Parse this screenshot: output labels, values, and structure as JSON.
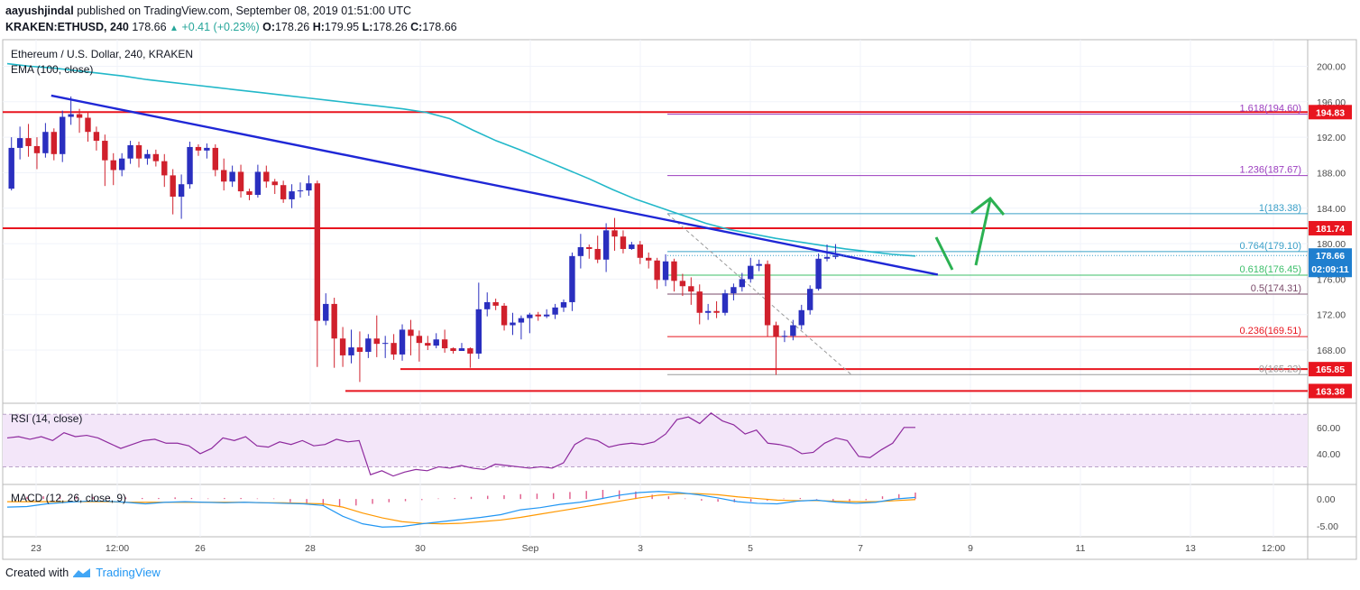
{
  "header": {
    "author": "aayushjindal",
    "published_text": "published on TradingView.com, September 08, 2019 01:51:00 UTC",
    "symbol": "KRAKEN:ETHUSD, 240",
    "last": "178.66",
    "change": "+0.41 (+0.23%)",
    "o_label": "O:",
    "o": "178.26",
    "h_label": "H:",
    "h": "179.95",
    "l_label": "L:",
    "l": "178.26",
    "c_label": "C:",
    "c": "178.66"
  },
  "legend": {
    "title": "Ethereum / U.S. Dollar, 240, KRAKEN",
    "ema": "EMA (100, close)",
    "rsi": "RSI (14, close)",
    "macd": "MACD (12, 26, close, 9)"
  },
  "footer": {
    "created_with": "Created with",
    "brand": "TradingView"
  },
  "colors": {
    "up": "#2a2fbf",
    "down": "#d0202c",
    "ema": "#22b8c9",
    "trend": "#1f27d6",
    "hline": "#e8151f",
    "fib_purple": "#9b3dbf",
    "fib_blue": "#3aa0c8",
    "rsi": "#8e2a9e",
    "arrow": "#2bb152",
    "macd_line": "#2196f3",
    "signal_line": "#ff9800"
  },
  "chart_data": {
    "type": "candlestick",
    "price_axis": {
      "ylim": [
        162.0,
        203.0
      ],
      "ticks": [
        "200.00",
        "196.00",
        "192.00",
        "188.00",
        "184.00",
        "180.00",
        "176.00",
        "172.00",
        "168.00"
      ]
    },
    "time_axis": {
      "labels": [
        "23",
        "12:00",
        "26",
        "28",
        "30",
        "Sep",
        "3",
        "5",
        "7",
        "9",
        "11",
        "13",
        "12:00"
      ]
    },
    "candles": [
      [
        186.2,
        190.8,
        186.0,
        192.0
      ],
      [
        190.8,
        191.9,
        189.5,
        193.2
      ],
      [
        191.9,
        191.0,
        189.8,
        193.5
      ],
      [
        191.0,
        190.2,
        188.4,
        192.0
      ],
      [
        190.2,
        192.6,
        189.7,
        193.6
      ],
      [
        192.6,
        190.1,
        189.4,
        193.0
      ],
      [
        190.1,
        194.3,
        189.2,
        195.0
      ],
      [
        194.3,
        194.6,
        193.4,
        196.6
      ],
      [
        194.6,
        194.2,
        192.5,
        195.2
      ],
      [
        194.2,
        192.6,
        191.5,
        194.8
      ],
      [
        192.6,
        191.6,
        190.5,
        193.2
      ],
      [
        191.6,
        189.4,
        186.5,
        192.3
      ],
      [
        189.4,
        188.3,
        186.6,
        190.2
      ],
      [
        188.3,
        189.6,
        187.6,
        190.2
      ],
      [
        189.6,
        191.1,
        189.0,
        191.6
      ],
      [
        191.1,
        189.6,
        188.6,
        191.5
      ],
      [
        189.6,
        190.1,
        188.9,
        190.6
      ],
      [
        190.1,
        189.3,
        188.7,
        190.6
      ],
      [
        189.3,
        187.7,
        186.4,
        190.1
      ],
      [
        187.7,
        185.3,
        183.3,
        188.4
      ],
      [
        185.3,
        186.7,
        182.8,
        187.8
      ],
      [
        186.7,
        190.9,
        186.2,
        191.5
      ],
      [
        190.9,
        190.5,
        189.9,
        191.2
      ],
      [
        190.5,
        190.8,
        189.6,
        191.3
      ],
      [
        190.8,
        188.3,
        187.6,
        191.2
      ],
      [
        188.3,
        187.0,
        186.0,
        189.6
      ],
      [
        187.0,
        188.1,
        186.4,
        188.8
      ],
      [
        188.1,
        185.9,
        185.2,
        188.9
      ],
      [
        185.9,
        185.5,
        184.9,
        186.2
      ],
      [
        185.5,
        188.1,
        185.2,
        188.9
      ],
      [
        188.1,
        187.0,
        186.3,
        188.8
      ],
      [
        187.0,
        186.6,
        185.6,
        187.3
      ],
      [
        186.6,
        185.0,
        184.6,
        187.1
      ],
      [
        185.0,
        185.9,
        184.0,
        186.7
      ],
      [
        185.9,
        186.0,
        185.2,
        186.9
      ],
      [
        186.0,
        186.8,
        185.4,
        187.7
      ],
      [
        186.8,
        171.3,
        166.1,
        187.1
      ],
      [
        171.3,
        173.2,
        170.8,
        174.4
      ],
      [
        173.2,
        169.3,
        166.0,
        173.9
      ],
      [
        169.3,
        167.4,
        166.1,
        170.6
      ],
      [
        167.4,
        168.3,
        166.5,
        170.3
      ],
      [
        168.3,
        167.8,
        164.4,
        170.1
      ],
      [
        167.8,
        169.3,
        167.1,
        169.8
      ],
      [
        169.3,
        168.7,
        167.2,
        171.9
      ],
      [
        168.7,
        168.8,
        167.1,
        169.6
      ],
      [
        168.8,
        167.5,
        166.9,
        169.8
      ],
      [
        167.5,
        170.3,
        166.8,
        170.9
      ],
      [
        170.3,
        169.6,
        167.4,
        171.4
      ],
      [
        169.6,
        168.8,
        166.7,
        170.2
      ],
      [
        168.8,
        168.5,
        168.0,
        169.6
      ],
      [
        168.5,
        169.2,
        168.2,
        169.9
      ],
      [
        169.2,
        168.2,
        167.7,
        170.3
      ],
      [
        168.2,
        167.9,
        167.6,
        168.3
      ],
      [
        167.9,
        168.2,
        167.9,
        168.8
      ],
      [
        168.2,
        167.6,
        166.0,
        168.3
      ],
      [
        167.6,
        172.6,
        167.0,
        175.6
      ],
      [
        172.6,
        173.4,
        171.8,
        174.5
      ],
      [
        173.4,
        173.0,
        172.5,
        173.8
      ],
      [
        173.0,
        170.8,
        170.2,
        173.3
      ],
      [
        170.8,
        171.1,
        169.7,
        172.2
      ],
      [
        171.1,
        171.6,
        169.2,
        171.9
      ],
      [
        171.6,
        172.0,
        169.9,
        172.2
      ],
      [
        172.0,
        171.8,
        171.3,
        172.3
      ],
      [
        171.8,
        172.0,
        171.6,
        172.6
      ],
      [
        172.0,
        172.8,
        171.5,
        173.2
      ],
      [
        172.8,
        173.4,
        172.3,
        173.7
      ],
      [
        173.4,
        178.6,
        172.4,
        179.0
      ],
      [
        178.6,
        179.6,
        177.2,
        181.1
      ],
      [
        179.6,
        179.4,
        178.3,
        179.9
      ],
      [
        179.4,
        178.2,
        177.8,
        180.9
      ],
      [
        178.2,
        181.5,
        176.8,
        182.3
      ],
      [
        181.5,
        180.8,
        179.2,
        182.9
      ],
      [
        180.8,
        179.4,
        178.9,
        181.5
      ],
      [
        179.4,
        179.9,
        179.3,
        180.2
      ],
      [
        179.9,
        178.4,
        177.7,
        180.3
      ],
      [
        178.4,
        178.1,
        177.2,
        179.0
      ],
      [
        178.1,
        175.9,
        174.9,
        178.4
      ],
      [
        175.9,
        178.0,
        175.2,
        178.8
      ],
      [
        178.0,
        175.8,
        174.6,
        178.3
      ],
      [
        175.8,
        175.2,
        174.1,
        176.6
      ],
      [
        175.2,
        174.6,
        173.1,
        176.2
      ],
      [
        174.6,
        172.2,
        170.9,
        175.4
      ],
      [
        172.2,
        172.4,
        171.4,
        173.2
      ],
      [
        172.4,
        172.2,
        171.6,
        173.5
      ],
      [
        172.2,
        174.4,
        171.9,
        174.8
      ],
      [
        174.4,
        175.1,
        173.6,
        175.5
      ],
      [
        175.1,
        176.0,
        174.6,
        176.7
      ],
      [
        176.0,
        177.5,
        175.6,
        178.4
      ],
      [
        177.5,
        177.7,
        176.9,
        178.2
      ],
      [
        177.7,
        170.8,
        169.5,
        178.1
      ],
      [
        170.8,
        169.5,
        165.2,
        171.2
      ],
      [
        169.5,
        169.6,
        168.9,
        170.2
      ],
      [
        169.6,
        170.8,
        169.1,
        171.4
      ],
      [
        170.8,
        172.5,
        170.3,
        173.1
      ],
      [
        172.5,
        174.9,
        172.0,
        175.3
      ],
      [
        174.9,
        178.3,
        174.7,
        178.9
      ],
      [
        178.3,
        178.5,
        178.0,
        179.9
      ],
      [
        178.5,
        178.66,
        178.26,
        179.95
      ]
    ],
    "ema100": [
      200.3,
      200.0,
      199.8,
      199.5,
      199.2,
      198.9,
      198.5,
      198.2,
      197.9,
      197.6,
      197.3,
      197.0,
      196.7,
      196.4,
      196.1,
      195.8,
      195.5,
      195.2,
      194.8,
      194.1,
      192.8,
      191.6,
      190.6,
      189.5,
      188.4,
      187.3,
      186.1,
      185.0,
      184.1,
      183.2,
      182.3,
      181.6,
      181.1,
      180.6,
      180.2,
      179.8,
      179.4,
      179.1,
      178.8,
      178.6
    ],
    "horizontal_levels": [
      {
        "price": 194.83,
        "label": "194.83"
      },
      {
        "price": 181.74,
        "label": "181.74"
      },
      {
        "price": 165.85,
        "label": "165.85"
      },
      {
        "price": 163.38,
        "label": "163.38"
      }
    ],
    "current_price": {
      "price": 178.66,
      "label": "178.66",
      "timer": "02:09:11"
    },
    "fib_levels": [
      {
        "ratio": "1.618",
        "price": 194.6,
        "label": "1.618(194.60)"
      },
      {
        "ratio": "1.236",
        "price": 187.67,
        "label": "1.236(187.67)"
      },
      {
        "ratio": "1",
        "price": 183.38,
        "label": "1(183.38)"
      },
      {
        "ratio": "0.764",
        "price": 179.1,
        "label": "0.764(179.10)"
      },
      {
        "ratio": "0.618",
        "price": 176.45,
        "label": "0.618(176.45)"
      },
      {
        "ratio": "0.5",
        "price": 174.31,
        "label": "0.5(174.31)"
      },
      {
        "ratio": "0.236",
        "price": 169.51,
        "label": "0.236(169.51)"
      },
      {
        "ratio": "0",
        "price": 165.23,
        "label": "0(165.23)"
      }
    ],
    "trendline": {
      "start": [
        5,
        196.7
      ],
      "end": [
        98,
        176.5
      ]
    },
    "rsi": {
      "ylim": [
        20,
        75
      ],
      "ticks": [
        "60.00",
        "40.00"
      ],
      "band": [
        30,
        70
      ],
      "values": [
        52,
        53,
        51,
        53,
        50,
        56,
        53,
        54,
        52,
        48,
        44,
        47,
        50,
        51,
        48,
        48,
        46,
        40,
        44,
        52,
        50,
        53,
        46,
        45,
        49,
        47,
        50,
        46,
        47,
        51,
        49,
        50,
        24,
        27,
        23,
        26,
        28,
        27,
        30,
        29,
        31,
        29,
        28,
        32,
        31,
        30,
        29,
        30,
        29,
        33,
        47,
        52,
        50,
        45,
        47,
        48,
        47,
        49,
        55,
        66,
        68,
        63,
        71,
        65,
        62,
        55,
        58,
        48,
        47,
        45,
        40,
        41,
        48,
        52,
        50,
        38,
        37,
        43,
        48,
        60,
        60
      ]
    },
    "macd": {
      "ylim": [
        -6.5,
        2.2
      ],
      "ticks": [
        "0.00",
        "-5.00"
      ],
      "histogram": [
        0.4,
        0.5,
        0.6,
        0.5,
        0.4,
        0.3,
        0.3,
        0.2,
        0.2,
        0.3,
        0.2,
        0.1,
        0.2,
        0.2,
        0.1,
        0.1,
        -0.6,
        -1.0,
        -1.3,
        -1.5,
        -1.2,
        -0.9,
        -0.6,
        -0.4,
        -0.2,
        0.1,
        0.2,
        0.4,
        0.6,
        0.7,
        0.9,
        1.0,
        1.1,
        1.3,
        1.5,
        1.7,
        1.6,
        1.4,
        0.8,
        0.5,
        0.1,
        -0.3,
        -0.5,
        -0.6,
        -0.5,
        -0.3,
        0.1,
        0.2,
        -0.1,
        -0.5,
        -0.6,
        -0.2,
        0.5,
        0.9,
        1.2
      ],
      "macd_line": [
        -1.5,
        -1.4,
        -0.9,
        -0.6,
        -0.4,
        -0.4,
        -0.6,
        -0.9,
        -0.6,
        -0.5,
        -0.6,
        -0.7,
        -0.6,
        -0.7,
        -0.8,
        -0.9,
        -1.2,
        -3.2,
        -4.6,
        -5.2,
        -5.1,
        -4.6,
        -4.2,
        -3.8,
        -3.4,
        -2.9,
        -2.0,
        -1.6,
        -1.0,
        -0.6,
        0.0,
        0.7,
        1.2,
        1.4,
        1.2,
        0.8,
        0.2,
        -0.5,
        -0.8,
        -0.9,
        -0.4,
        -0.2,
        -0.6,
        -0.8,
        -0.6,
        0.0,
        0.3
      ],
      "signal_line": [
        -0.5,
        -0.5,
        -0.5,
        -0.5,
        -0.5,
        -0.5,
        -0.6,
        -0.6,
        -0.6,
        -0.6,
        -0.6,
        -0.6,
        -0.6,
        -0.7,
        -0.7,
        -0.8,
        -0.9,
        -1.5,
        -2.6,
        -3.5,
        -4.2,
        -4.5,
        -4.6,
        -4.5,
        -4.2,
        -3.9,
        -3.4,
        -2.8,
        -2.2,
        -1.6,
        -1.0,
        -0.4,
        0.2,
        0.7,
        1.0,
        1.0,
        0.8,
        0.4,
        0.1,
        -0.2,
        -0.3,
        -0.3,
        -0.4,
        -0.5,
        -0.5,
        -0.3,
        -0.1
      ]
    }
  }
}
